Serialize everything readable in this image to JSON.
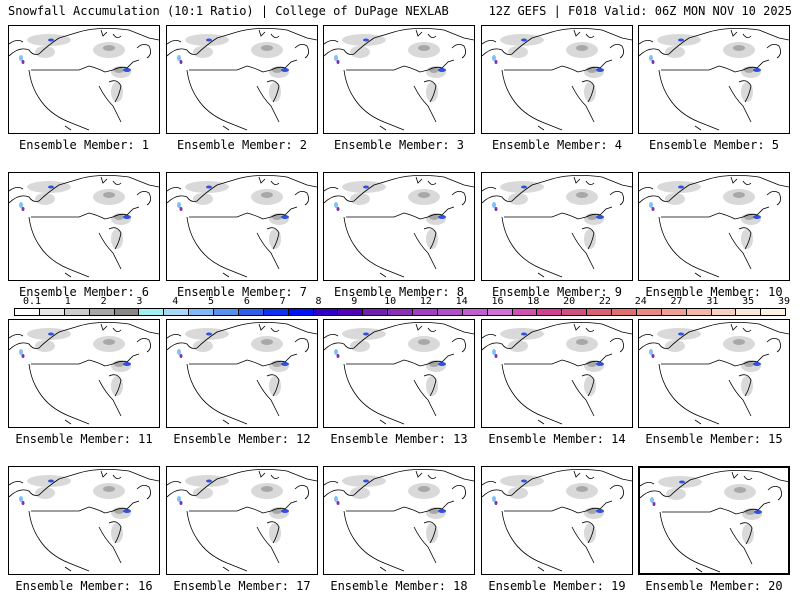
{
  "header": {
    "title": "Snowfall Accumulation (10:1 Ratio) | College of DuPage NEXLAB",
    "run_info": "12Z GEFS | F018 Valid: 06Z MON NOV 10 2025"
  },
  "members": [
    {
      "label": "Ensemble Member: 1"
    },
    {
      "label": "Ensemble Member: 2"
    },
    {
      "label": "Ensemble Member: 3"
    },
    {
      "label": "Ensemble Member: 4"
    },
    {
      "label": "Ensemble Member: 5"
    },
    {
      "label": "Ensemble Member: 6"
    },
    {
      "label": "Ensemble Member: 7"
    },
    {
      "label": "Ensemble Member: 8"
    },
    {
      "label": "Ensemble Member: 9"
    },
    {
      "label": "Ensemble Member: 10"
    },
    {
      "label": "Ensemble Member: 11"
    },
    {
      "label": "Ensemble Member: 12"
    },
    {
      "label": "Ensemble Member: 13"
    },
    {
      "label": "Ensemble Member: 14"
    },
    {
      "label": "Ensemble Member: 15"
    },
    {
      "label": "Ensemble Member: 16"
    },
    {
      "label": "Ensemble Member: 17"
    },
    {
      "label": "Ensemble Member: 18"
    },
    {
      "label": "Ensemble Member: 19"
    },
    {
      "label": "Ensemble Member: 20"
    }
  ],
  "selected_member": 20,
  "legend": {
    "labels": [
      "0.1",
      "1",
      "2",
      "3",
      "4",
      "5",
      "6",
      "7",
      "8",
      "9",
      "10",
      "12",
      "14",
      "16",
      "18",
      "20",
      "22",
      "24",
      "27",
      "31",
      "35",
      "39"
    ],
    "colors": [
      "#ffffff",
      "#e6e6e6",
      "#cccccc",
      "#a6a6a6",
      "#888888",
      "#a0f0f0",
      "#a8d8f8",
      "#80b8f8",
      "#5890f0",
      "#3060e8",
      "#1030f0",
      "#0010f8",
      "#3000c8",
      "#5000b8",
      "#7020b0",
      "#8a30b8",
      "#a040c0",
      "#b050c8",
      "#c060d0",
      "#d070d8",
      "#d050b0",
      "#d04090",
      "#d05080",
      "#d86070",
      "#e07070",
      "#e88a80",
      "#f0a090",
      "#f4b8a8",
      "#f8d0c0",
      "#fce8d8",
      "#fff2e0"
    ]
  }
}
